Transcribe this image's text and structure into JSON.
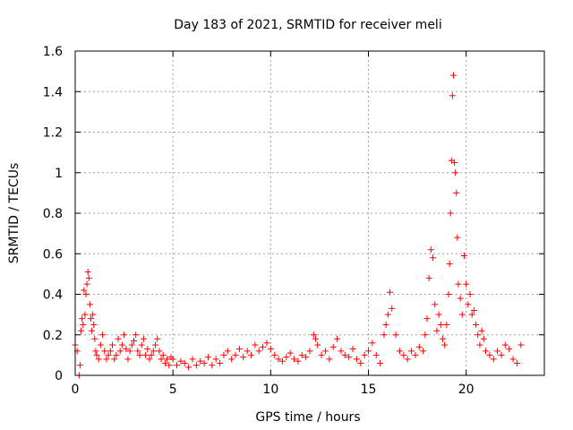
{
  "chart_data": {
    "type": "scatter",
    "title": "Day 183 of 2021, SRMTID for receiver meli",
    "xlabel": "GPS time / hours",
    "ylabel": "SRMTID / TECUs",
    "xlim": [
      0,
      24
    ],
    "ylim": [
      0,
      1.6
    ],
    "xticks": [
      0,
      5,
      10,
      15,
      20
    ],
    "xtick_labels": [
      "0",
      "5",
      "10",
      "15",
      "20"
    ],
    "yticks": [
      0,
      0.2,
      0.4,
      0.6,
      0.8,
      1.0,
      1.2,
      1.4,
      1.6
    ],
    "ytick_labels": [
      "0",
      "0.2",
      "0.4",
      "0.6",
      "0.8",
      "1",
      "1.2",
      "1.4",
      "1.6"
    ],
    "grid": true,
    "marker": "plus",
    "color": "#ff0000",
    "series": [
      {
        "name": "SRMTID",
        "x": [
          0.0,
          0.1,
          0.2,
          0.25,
          0.3,
          0.35,
          0.4,
          0.45,
          0.5,
          0.55,
          0.6,
          0.65,
          0.7,
          0.75,
          0.8,
          0.85,
          0.9,
          0.95,
          1.0,
          1.05,
          1.1,
          1.2,
          1.3,
          1.4,
          1.5,
          1.6,
          1.7,
          1.8,
          1.9,
          2.0,
          2.1,
          2.2,
          2.3,
          2.4,
          2.5,
          2.6,
          2.7,
          2.8,
          2.9,
          3.0,
          3.1,
          3.2,
          3.3,
          3.4,
          3.5,
          3.6,
          3.7,
          3.8,
          3.9,
          4.0,
          4.1,
          4.2,
          4.3,
          4.4,
          4.5,
          4.6,
          4.7,
          4.8,
          4.9,
          5.0,
          5.2,
          5.4,
          5.6,
          5.8,
          6.0,
          6.2,
          6.4,
          6.6,
          6.8,
          7.0,
          7.2,
          7.4,
          7.6,
          7.8,
          8.0,
          8.2,
          8.4,
          8.6,
          8.8,
          9.0,
          9.2,
          9.4,
          9.6,
          9.8,
          10.0,
          10.2,
          10.4,
          10.6,
          10.8,
          11.0,
          11.2,
          11.4,
          11.6,
          11.8,
          12.0,
          12.2,
          12.3,
          12.4,
          12.6,
          12.8,
          13.0,
          13.2,
          13.4,
          13.6,
          13.8,
          14.0,
          14.2,
          14.4,
          14.6,
          14.8,
          15.0,
          15.2,
          15.4,
          15.6,
          15.8,
          15.9,
          16.0,
          16.1,
          16.2,
          16.4,
          16.6,
          16.8,
          17.0,
          17.2,
          17.4,
          17.6,
          17.8,
          17.9,
          18.0,
          18.1,
          18.2,
          18.3,
          18.4,
          18.5,
          18.6,
          18.7,
          18.8,
          18.9,
          19.0,
          19.1,
          19.15,
          19.2,
          19.25,
          19.3,
          19.35,
          19.4,
          19.45,
          19.5,
          19.55,
          19.6,
          19.7,
          19.8,
          19.9,
          20.0,
          20.1,
          20.2,
          20.3,
          20.4,
          20.5,
          20.6,
          20.7,
          20.8,
          20.9,
          21.0,
          21.2,
          21.4,
          21.6,
          21.8,
          22.0,
          22.2,
          22.4,
          22.6,
          22.8
        ],
        "y": [
          0.15,
          0.12,
          0.0,
          0.05,
          0.22,
          0.28,
          0.25,
          0.42,
          0.3,
          0.4,
          0.45,
          0.51,
          0.48,
          0.35,
          0.28,
          0.22,
          0.3,
          0.25,
          0.18,
          0.12,
          0.1,
          0.08,
          0.15,
          0.2,
          0.12,
          0.08,
          0.1,
          0.12,
          0.15,
          0.08,
          0.1,
          0.18,
          0.12,
          0.15,
          0.2,
          0.13,
          0.08,
          0.12,
          0.15,
          0.17,
          0.2,
          0.12,
          0.1,
          0.15,
          0.18,
          0.1,
          0.13,
          0.08,
          0.1,
          0.12,
          0.15,
          0.18,
          0.12,
          0.08,
          0.1,
          0.06,
          0.08,
          0.05,
          0.09,
          0.08,
          0.05,
          0.07,
          0.06,
          0.04,
          0.08,
          0.05,
          0.07,
          0.06,
          0.09,
          0.05,
          0.08,
          0.06,
          0.1,
          0.12,
          0.08,
          0.1,
          0.13,
          0.09,
          0.12,
          0.1,
          0.15,
          0.12,
          0.14,
          0.16,
          0.13,
          0.1,
          0.08,
          0.07,
          0.09,
          0.11,
          0.08,
          0.07,
          0.1,
          0.09,
          0.12,
          0.2,
          0.18,
          0.15,
          0.1,
          0.12,
          0.08,
          0.14,
          0.18,
          0.12,
          0.1,
          0.09,
          0.13,
          0.08,
          0.06,
          0.1,
          0.12,
          0.16,
          0.1,
          0.06,
          0.2,
          0.25,
          0.3,
          0.41,
          0.33,
          0.2,
          0.12,
          0.1,
          0.08,
          0.12,
          0.1,
          0.14,
          0.12,
          0.2,
          0.28,
          0.48,
          0.62,
          0.58,
          0.35,
          0.22,
          0.3,
          0.25,
          0.18,
          0.15,
          0.25,
          0.4,
          0.55,
          0.8,
          1.06,
          1.38,
          1.48,
          1.05,
          1.0,
          0.9,
          0.68,
          0.45,
          0.38,
          0.3,
          0.59,
          0.45,
          0.35,
          0.4,
          0.3,
          0.32,
          0.25,
          0.2,
          0.15,
          0.22,
          0.18,
          0.12,
          0.1,
          0.08,
          0.12,
          0.1,
          0.15,
          0.13,
          0.08,
          0.06,
          0.15
        ]
      }
    ]
  }
}
